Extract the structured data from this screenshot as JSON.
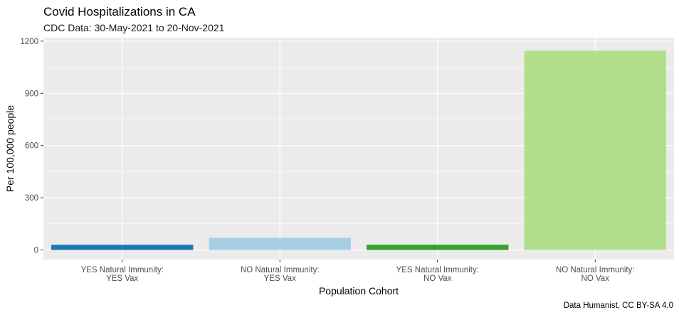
{
  "chart_data": {
    "type": "bar",
    "title": "Covid Hospitalizations in CA",
    "subtitle": "CDC Data: 30-May-2021 to 20-Nov-2021",
    "xlabel": "Population Cohort",
    "ylabel": "Per 100,000 people",
    "caption": "Data Humanist, CC BY-SA 4.0",
    "categories": [
      [
        "YES Natural Immunity:",
        "YES Vax"
      ],
      [
        "NO Natural Immunity:",
        "YES Vax"
      ],
      [
        "YES Natural Immunity:",
        "NO Vax"
      ],
      [
        "NO Natural Immunity:",
        "NO Vax"
      ]
    ],
    "values": [
      30,
      70,
      30,
      1145
    ],
    "colors": [
      "#1f78b4",
      "#a6cee3",
      "#33a02c",
      "#b2df8a"
    ],
    "yticks": [
      0,
      300,
      600,
      900,
      1200
    ],
    "ytick_labels": [
      "0",
      "300",
      "600",
      "900",
      "1200"
    ],
    "ylim": [
      -55,
      1220
    ],
    "grid": true,
    "panel_background": "#ebebeb",
    "legend": "none"
  }
}
